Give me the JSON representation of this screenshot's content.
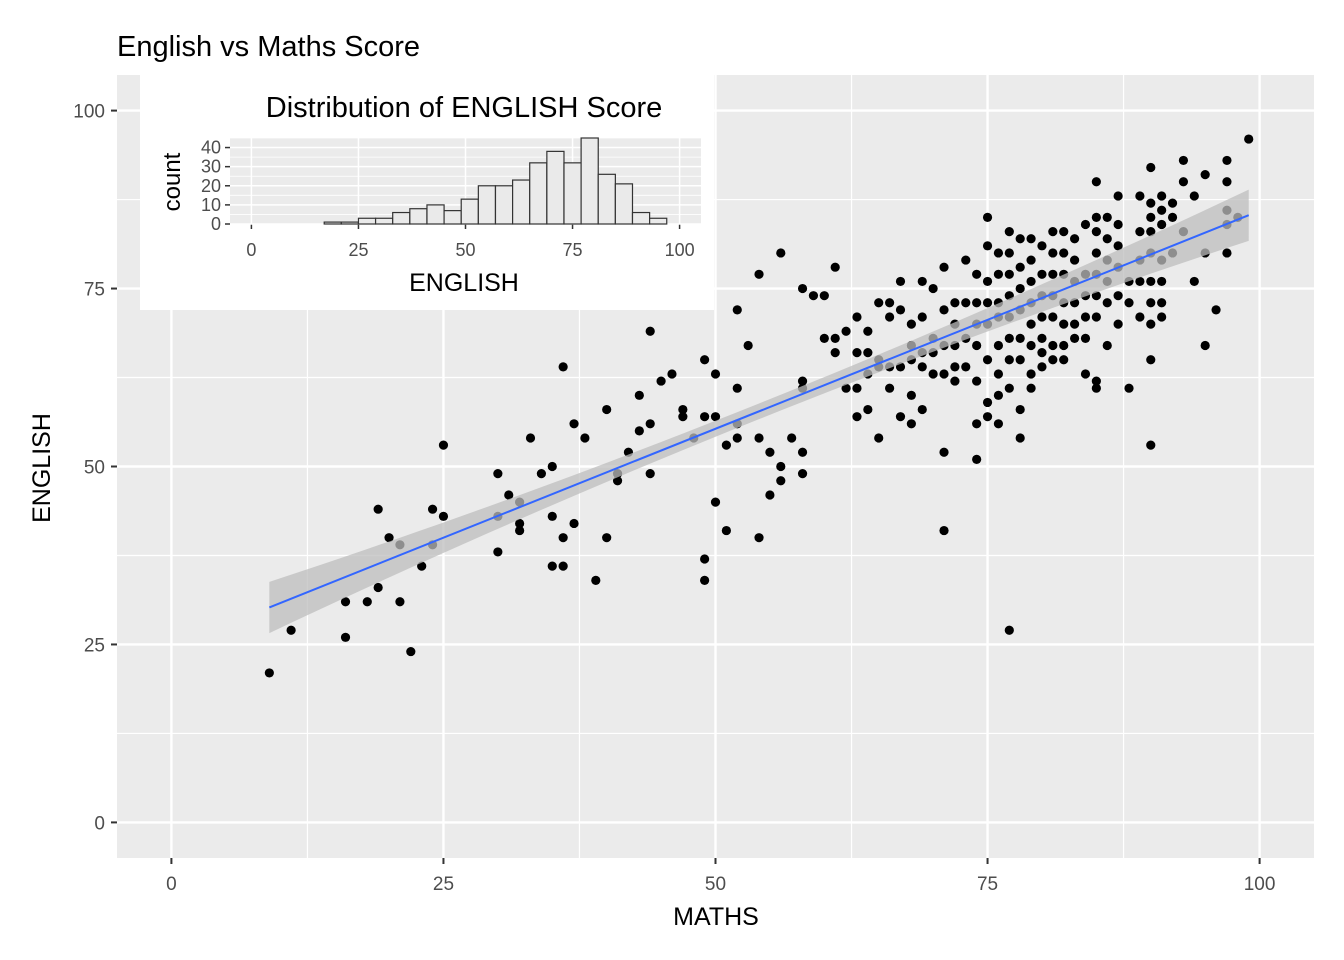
{
  "main_chart": {
    "title": "English vs Maths Score",
    "xlabel": "MATHS",
    "ylabel": "ENGLISH",
    "x_ticks": [
      0,
      25,
      50,
      75,
      100
    ],
    "y_ticks": [
      0,
      25,
      50,
      75,
      100
    ],
    "colors": {
      "panel": "#ebebeb",
      "grid": "#ffffff",
      "points": "#000000",
      "fit_line": "#3366ff",
      "ribbon": "#bdbdbd"
    }
  },
  "inset_chart": {
    "title": "Distribution of ENGLISH Score",
    "xlabel": "ENGLISH",
    "ylabel": "count",
    "x_ticks": [
      0,
      25,
      50,
      75,
      100
    ],
    "y_ticks": [
      0,
      10,
      20,
      30,
      40
    ]
  },
  "chart_data": [
    {
      "type": "scatter",
      "title": "English vs Maths Score",
      "xlabel": "MATHS",
      "ylabel": "ENGLISH",
      "xlim": [
        -5,
        105
      ],
      "ylim": [
        -5,
        105
      ],
      "grid": true,
      "points": [
        [
          9,
          21
        ],
        [
          11,
          27
        ],
        [
          16,
          26
        ],
        [
          16,
          31
        ],
        [
          18,
          31
        ],
        [
          19,
          33
        ],
        [
          19,
          44
        ],
        [
          20,
          40
        ],
        [
          21,
          39
        ],
        [
          21,
          31
        ],
        [
          22,
          24
        ],
        [
          23,
          36
        ],
        [
          24,
          39
        ],
        [
          24,
          44
        ],
        [
          25,
          43
        ],
        [
          25,
          53
        ],
        [
          30,
          49
        ],
        [
          30,
          43
        ],
        [
          30,
          38
        ],
        [
          31,
          46
        ],
        [
          32,
          45
        ],
        [
          32,
          42
        ],
        [
          32,
          41
        ],
        [
          33,
          54
        ],
        [
          34,
          49
        ],
        [
          35,
          50
        ],
        [
          35,
          43
        ],
        [
          35,
          36
        ],
        [
          36,
          40
        ],
        [
          36,
          36
        ],
        [
          36,
          64
        ],
        [
          37,
          42
        ],
        [
          37,
          56
        ],
        [
          38,
          54
        ],
        [
          39,
          34
        ],
        [
          40,
          58
        ],
        [
          40,
          40
        ],
        [
          41,
          48
        ],
        [
          41,
          49
        ],
        [
          42,
          52
        ],
        [
          43,
          60
        ],
        [
          43,
          55
        ],
        [
          44,
          69
        ],
        [
          44,
          56
        ],
        [
          44,
          49
        ],
        [
          45,
          62
        ],
        [
          46,
          63
        ],
        [
          47,
          58
        ],
        [
          47,
          57
        ],
        [
          48,
          54
        ],
        [
          49,
          65
        ],
        [
          49,
          57
        ],
        [
          49,
          37
        ],
        [
          49,
          34
        ],
        [
          50,
          63
        ],
        [
          50,
          57
        ],
        [
          50,
          45
        ],
        [
          51,
          53
        ],
        [
          51,
          41
        ],
        [
          52,
          56
        ],
        [
          52,
          54
        ],
        [
          52,
          61
        ],
        [
          52,
          72
        ],
        [
          53,
          67
        ],
        [
          54,
          77
        ],
        [
          54,
          54
        ],
        [
          54,
          40
        ],
        [
          55,
          46
        ],
        [
          55,
          52
        ],
        [
          56,
          80
        ],
        [
          56,
          50
        ],
        [
          56,
          48
        ],
        [
          57,
          54
        ],
        [
          58,
          75
        ],
        [
          58,
          62
        ],
        [
          58,
          61
        ],
        [
          58,
          52
        ],
        [
          58,
          49
        ],
        [
          59,
          74
        ],
        [
          60,
          74
        ],
        [
          60,
          68
        ],
        [
          61,
          78
        ],
        [
          61,
          68
        ],
        [
          61,
          66
        ],
        [
          62,
          69
        ],
        [
          62,
          61
        ],
        [
          63,
          71
        ],
        [
          63,
          66
        ],
        [
          63,
          61
        ],
        [
          63,
          57
        ],
        [
          64,
          69
        ],
        [
          64,
          66
        ],
        [
          64,
          63
        ],
        [
          64,
          58
        ],
        [
          65,
          73
        ],
        [
          65,
          65
        ],
        [
          65,
          64
        ],
        [
          65,
          54
        ],
        [
          66,
          73
        ],
        [
          66,
          71
        ],
        [
          66,
          64
        ],
        [
          66,
          61
        ],
        [
          67,
          76
        ],
        [
          67,
          72
        ],
        [
          67,
          64
        ],
        [
          67,
          57
        ],
        [
          68,
          70
        ],
        [
          68,
          67
        ],
        [
          68,
          65
        ],
        [
          68,
          60
        ],
        [
          68,
          56
        ],
        [
          69,
          76
        ],
        [
          69,
          71
        ],
        [
          69,
          66
        ],
        [
          69,
          64
        ],
        [
          69,
          58
        ],
        [
          70,
          75
        ],
        [
          70,
          68
        ],
        [
          70,
          66
        ],
        [
          70,
          63
        ],
        [
          71,
          78
        ],
        [
          71,
          72
        ],
        [
          71,
          67
        ],
        [
          71,
          63
        ],
        [
          71,
          52
        ],
        [
          71,
          41
        ],
        [
          72,
          73
        ],
        [
          72,
          70
        ],
        [
          72,
          67
        ],
        [
          72,
          64
        ],
        [
          72,
          62
        ],
        [
          73,
          79
        ],
        [
          73,
          73
        ],
        [
          73,
          68
        ],
        [
          73,
          64
        ],
        [
          74,
          77
        ],
        [
          74,
          73
        ],
        [
          74,
          70
        ],
        [
          74,
          67
        ],
        [
          74,
          62
        ],
        [
          74,
          56
        ],
        [
          74,
          51
        ],
        [
          75,
          85
        ],
        [
          75,
          81
        ],
        [
          75,
          76
        ],
        [
          75,
          73
        ],
        [
          75,
          70
        ],
        [
          75,
          65
        ],
        [
          75,
          59
        ],
        [
          75,
          57
        ],
        [
          76,
          80
        ],
        [
          76,
          77
        ],
        [
          76,
          73
        ],
        [
          76,
          71
        ],
        [
          76,
          67
        ],
        [
          76,
          63
        ],
        [
          76,
          60
        ],
        [
          76,
          56
        ],
        [
          77,
          83
        ],
        [
          77,
          80
        ],
        [
          77,
          77
        ],
        [
          77,
          74
        ],
        [
          77,
          71
        ],
        [
          77,
          68
        ],
        [
          77,
          65
        ],
        [
          77,
          61
        ],
        [
          77,
          27
        ],
        [
          78,
          82
        ],
        [
          78,
          78
        ],
        [
          78,
          75
        ],
        [
          78,
          72
        ],
        [
          78,
          68
        ],
        [
          78,
          65
        ],
        [
          78,
          58
        ],
        [
          78,
          54
        ],
        [
          79,
          82
        ],
        [
          79,
          79
        ],
        [
          79,
          76
        ],
        [
          79,
          73
        ],
        [
          79,
          70
        ],
        [
          79,
          67
        ],
        [
          79,
          63
        ],
        [
          79,
          61
        ],
        [
          80,
          81
        ],
        [
          80,
          77
        ],
        [
          80,
          74
        ],
        [
          80,
          71
        ],
        [
          80,
          68
        ],
        [
          80,
          66
        ],
        [
          80,
          64
        ],
        [
          81,
          83
        ],
        [
          81,
          80
        ],
        [
          81,
          77
        ],
        [
          81,
          74
        ],
        [
          81,
          71
        ],
        [
          81,
          67
        ],
        [
          81,
          65
        ],
        [
          82,
          83
        ],
        [
          82,
          80
        ],
        [
          82,
          77
        ],
        [
          82,
          73
        ],
        [
          82,
          70
        ],
        [
          82,
          67
        ],
        [
          82,
          65
        ],
        [
          83,
          82
        ],
        [
          83,
          79
        ],
        [
          83,
          76
        ],
        [
          83,
          73
        ],
        [
          83,
          70
        ],
        [
          83,
          68
        ],
        [
          84,
          84
        ],
        [
          84,
          77
        ],
        [
          84,
          74
        ],
        [
          84,
          71
        ],
        [
          84,
          68
        ],
        [
          84,
          63
        ],
        [
          85,
          90
        ],
        [
          85,
          85
        ],
        [
          85,
          83
        ],
        [
          85,
          80
        ],
        [
          85,
          77
        ],
        [
          85,
          74
        ],
        [
          85,
          71
        ],
        [
          85,
          62
        ],
        [
          85,
          61
        ],
        [
          86,
          85
        ],
        [
          86,
          82
        ],
        [
          86,
          79
        ],
        [
          86,
          76
        ],
        [
          86,
          73
        ],
        [
          86,
          67
        ],
        [
          87,
          88
        ],
        [
          87,
          84
        ],
        [
          87,
          81
        ],
        [
          87,
          78
        ],
        [
          87,
          74
        ],
        [
          87,
          70
        ],
        [
          88,
          76
        ],
        [
          88,
          73
        ],
        [
          88,
          61
        ],
        [
          89,
          88
        ],
        [
          89,
          83
        ],
        [
          89,
          79
        ],
        [
          89,
          76
        ],
        [
          89,
          71
        ],
        [
          90,
          92
        ],
        [
          90,
          87
        ],
        [
          90,
          85
        ],
        [
          90,
          83
        ],
        [
          90,
          80
        ],
        [
          90,
          76
        ],
        [
          90,
          73
        ],
        [
          90,
          70
        ],
        [
          90,
          65
        ],
        [
          90,
          53
        ],
        [
          91,
          88
        ],
        [
          91,
          86
        ],
        [
          91,
          84
        ],
        [
          91,
          79
        ],
        [
          91,
          76
        ],
        [
          91,
          73
        ],
        [
          91,
          71
        ],
        [
          92,
          87
        ],
        [
          92,
          85
        ],
        [
          92,
          80
        ],
        [
          93,
          93
        ],
        [
          93,
          90
        ],
        [
          93,
          83
        ],
        [
          94,
          88
        ],
        [
          94,
          76
        ],
        [
          95,
          91
        ],
        [
          95,
          80
        ],
        [
          95,
          67
        ],
        [
          96,
          72
        ],
        [
          97,
          93
        ],
        [
          97,
          90
        ],
        [
          97,
          86
        ],
        [
          97,
          84
        ],
        [
          97,
          80
        ],
        [
          98,
          85
        ],
        [
          99,
          96
        ]
      ],
      "fit_line": {
        "x": [
          9,
          99
        ],
        "y": [
          30.2,
          85.3
        ],
        "ribbon_half_width_end": 3.6,
        "ribbon_half_width_mid": 1.1
      }
    },
    {
      "type": "bar",
      "title": "Distribution of ENGLISH Score",
      "xlabel": "ENGLISH",
      "ylabel": "count",
      "xlim": [
        -5,
        105
      ],
      "ylim": [
        0,
        45
      ],
      "bin_width": 4,
      "bins": [
        {
          "center": 19,
          "count": 1
        },
        {
          "center": 23,
          "count": 1
        },
        {
          "center": 27,
          "count": 3
        },
        {
          "center": 31,
          "count": 3
        },
        {
          "center": 35,
          "count": 6
        },
        {
          "center": 39,
          "count": 8
        },
        {
          "center": 43,
          "count": 10
        },
        {
          "center": 47,
          "count": 7
        },
        {
          "center": 51,
          "count": 13
        },
        {
          "center": 55,
          "count": 20
        },
        {
          "center": 59,
          "count": 20
        },
        {
          "center": 63,
          "count": 23
        },
        {
          "center": 67,
          "count": 32
        },
        {
          "center": 71,
          "count": 38
        },
        {
          "center": 75,
          "count": 32
        },
        {
          "center": 79,
          "count": 45
        },
        {
          "center": 83,
          "count": 26
        },
        {
          "center": 87,
          "count": 21
        },
        {
          "center": 91,
          "count": 6
        },
        {
          "center": 95,
          "count": 3
        }
      ]
    }
  ]
}
